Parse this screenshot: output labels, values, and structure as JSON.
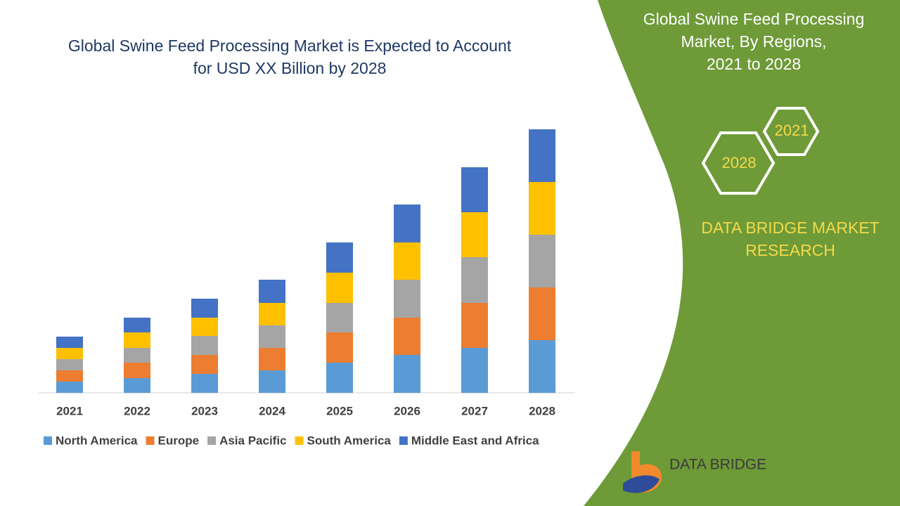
{
  "chart_data": {
    "type": "stacked-bar",
    "title": [
      "Global Swine Feed Processing Market is Expected to Account",
      "for USD XX Billion by 2028"
    ],
    "categories": [
      "2021",
      "2022",
      "2023",
      "2024",
      "2025",
      "2026",
      "2027",
      "2028"
    ],
    "series": [
      {
        "name": "North America",
        "color": "#5b9bd5",
        "values": [
          16,
          21,
          27,
          32,
          43,
          54,
          64,
          75
        ]
      },
      {
        "name": "Europe",
        "color": "#ed7d31",
        "values": [
          16,
          22,
          27,
          32,
          43,
          53,
          64,
          75
        ]
      },
      {
        "name": "Asia Pacific",
        "color": "#a5a5a5",
        "values": [
          16,
          21,
          27,
          32,
          42,
          54,
          65,
          75
        ]
      },
      {
        "name": "South America",
        "color": "#ffc000",
        "values": [
          16,
          22,
          26,
          32,
          43,
          53,
          64,
          75
        ]
      },
      {
        "name": "Middle East and Africa",
        "color": "#4472c4",
        "values": [
          16,
          21,
          27,
          33,
          43,
          54,
          64,
          75
        ]
      }
    ],
    "ylim": [
      0,
      400
    ]
  },
  "panel": {
    "title": [
      "Global Swine Feed Processing",
      "Market, By Regions,",
      "2021 to 2028"
    ],
    "hexagons": [
      "2021",
      "2028"
    ],
    "brand": [
      "DATA BRIDGE MARKET",
      "RESEARCH"
    ],
    "logo": "DATA BRIDGE"
  }
}
